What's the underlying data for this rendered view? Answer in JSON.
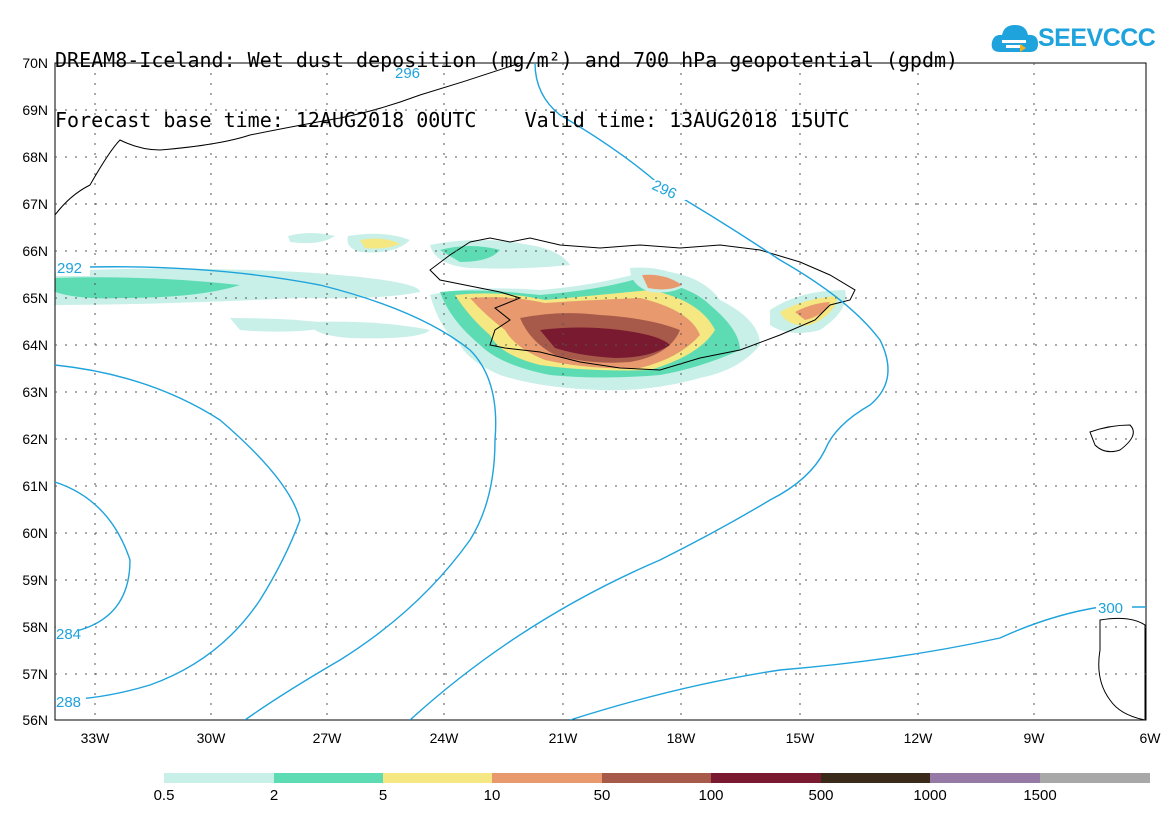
{
  "header": {
    "title_line1": "DREAM8-Iceland: Wet dust deposition (mg/m²) and 700 hPa geopotential (gpdm)",
    "title_line2": "Forecast base time: 12AUG2018 00UTC    Valid time: 13AUG2018 15UTC"
  },
  "logo": {
    "text": "SEEVCCC",
    "icon": "cloud-icon",
    "color": "#1fa3dc"
  },
  "map": {
    "lat_labels": [
      "70N",
      "69N",
      "68N",
      "67N",
      "66N",
      "65N",
      "64N",
      "63N",
      "62N",
      "61N",
      "60N",
      "59N",
      "58N",
      "57N",
      "56N"
    ],
    "lon_labels": [
      "33W",
      "30W",
      "27W",
      "24W",
      "21W",
      "18W",
      "15W",
      "12W",
      "9W",
      "6W"
    ],
    "contour_labels": [
      "296",
      "296",
      "292",
      "284",
      "288",
      "300"
    ],
    "contour_color": "#1fa3dc"
  },
  "legend": {
    "colors": [
      "#c8f0e8",
      "#5ddcb4",
      "#f5e882",
      "#e89a6e",
      "#a85a4a",
      "#7a1a30",
      "#3a2a1a",
      "#957aa5",
      "#a8a8a8"
    ],
    "labels": [
      "0.5",
      "2",
      "5",
      "10",
      "50",
      "100",
      "500",
      "1000",
      "1500"
    ]
  }
}
